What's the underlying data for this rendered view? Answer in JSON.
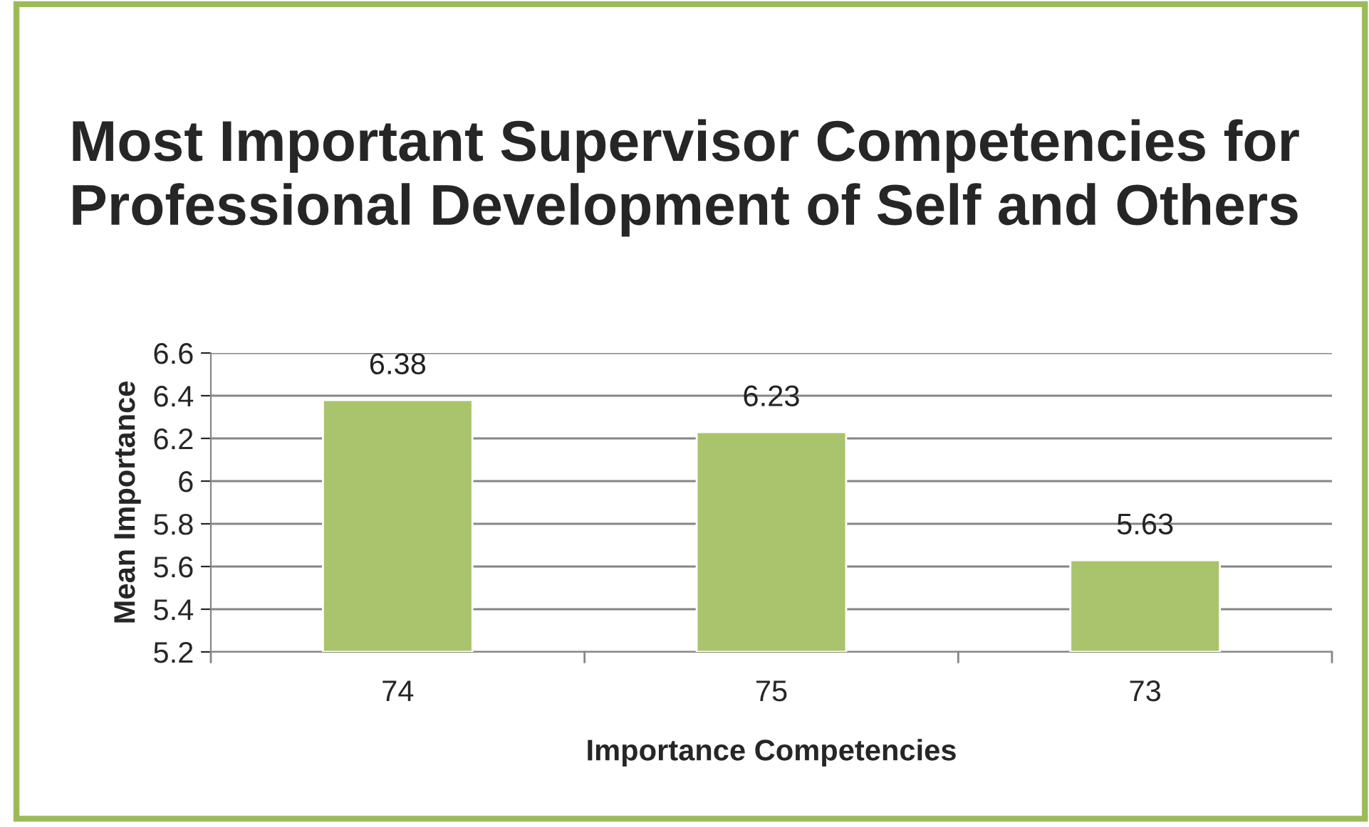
{
  "chart_data": {
    "type": "bar",
    "title": "Most Important Supervisor Competencies for Professional Development of Self and Others",
    "xlabel": "Importance Competencies",
    "ylabel": "Mean Importance",
    "categories": [
      "74",
      "75",
      "73"
    ],
    "values": [
      6.38,
      6.23,
      5.63
    ],
    "color": "#a9c46c",
    "ylim": [
      5.2,
      6.6
    ],
    "yticks": [
      5.2,
      5.4,
      5.6,
      5.8,
      6,
      6.2,
      6.4,
      6.6
    ],
    "grid": "y",
    "data_labels": true
  }
}
